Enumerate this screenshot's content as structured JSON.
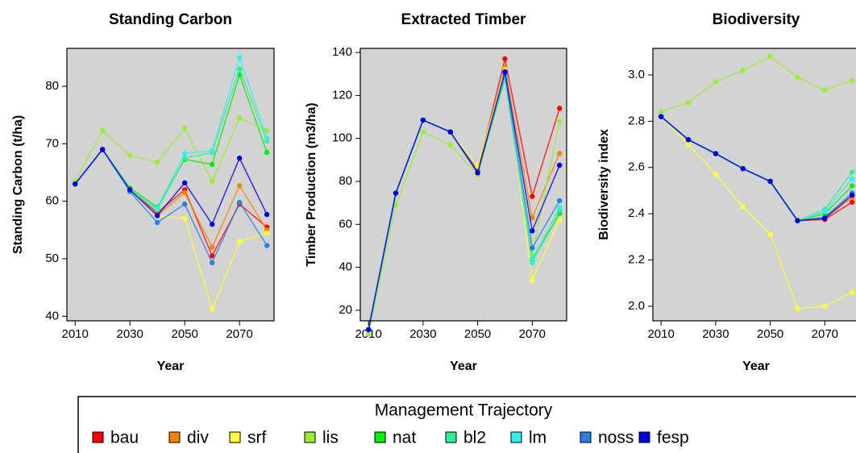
{
  "chart_data": [
    {
      "type": "line",
      "title": "Standing Carbon",
      "x_label": "Year",
      "y_label": "Standing Carbon (t/ha)",
      "x": [
        2010,
        2020,
        2030,
        2040,
        2050,
        2060,
        2070,
        2080
      ],
      "xlim": [
        2007,
        2082.6
      ],
      "xticks": [
        2010,
        2030,
        2050,
        2070
      ],
      "ylim": [
        39.2,
        86.6
      ],
      "yticks": [
        40,
        50,
        60,
        70,
        80
      ],
      "grid": false,
      "series": [
        {
          "name": "bau",
          "color": "#ff0000",
          "values": [
            63,
            69,
            62,
            58,
            62,
            50.5,
            59.5,
            55.5
          ]
        },
        {
          "name": "div",
          "color": "#ff8000",
          "values": [
            63,
            69,
            62,
            57.5,
            61.5,
            52,
            62.7,
            55
          ]
        },
        {
          "name": "srf",
          "color": "#ffff33",
          "values": [
            63,
            69,
            62,
            57.5,
            57,
            41.2,
            53,
            54.5
          ]
        },
        {
          "name": "lis",
          "color": "#99ee33",
          "values": [
            63.5,
            72.3,
            68,
            66.8,
            72.7,
            63.5,
            74.5,
            72.3
          ]
        },
        {
          "name": "nat",
          "color": "#00ee00",
          "values": [
            63,
            69,
            62.3,
            59,
            67.3,
            66.4,
            82,
            68.5
          ]
        },
        {
          "name": "bl2",
          "color": "#33ee99",
          "values": [
            63,
            69,
            62,
            58.5,
            67.5,
            68.5,
            83,
            70.5
          ]
        },
        {
          "name": "lm",
          "color": "#33eeee",
          "values": [
            63,
            69,
            62,
            58.8,
            68.3,
            68.8,
            85,
            71
          ]
        },
        {
          "name": "noss",
          "color": "#2b7fe0",
          "values": [
            63,
            69,
            61.7,
            56.3,
            59.5,
            49.3,
            59.8,
            52.3
          ]
        },
        {
          "name": "fesp",
          "color": "#0000dd",
          "values": [
            63,
            69,
            62,
            57.5,
            63.2,
            56,
            67.5,
            57.7
          ]
        }
      ]
    },
    {
      "type": "line",
      "title": "Extracted Timber",
      "x_label": "Year",
      "y_label": "Timber Production (m3/ha)",
      "x": [
        2010,
        2020,
        2030,
        2040,
        2050,
        2060,
        2070,
        2080
      ],
      "xlim": [
        2007,
        2082.6
      ],
      "xticks": [
        2010,
        2030,
        2050,
        2070
      ],
      "ylim": [
        15.1,
        141.9
      ],
      "yticks": [
        20,
        40,
        60,
        80,
        100,
        120,
        140
      ],
      "grid": false,
      "series": [
        {
          "name": "bau",
          "color": "#ff0000",
          "values": [
            11,
            74.5,
            108.5,
            103,
            85,
            137,
            73,
            114
          ]
        },
        {
          "name": "div",
          "color": "#ff8000",
          "values": [
            11,
            74.5,
            108.5,
            103,
            84,
            133,
            63,
            93
          ]
        },
        {
          "name": "srf",
          "color": "#ffff33",
          "values": [
            11,
            74.5,
            108.5,
            103,
            87,
            132,
            34,
            62
          ]
        },
        {
          "name": "lis",
          "color": "#99ee33",
          "values": [
            9,
            69,
            103,
            97,
            83,
            128,
            46,
            108
          ]
        },
        {
          "name": "nat",
          "color": "#00ee00",
          "values": [
            11,
            74.5,
            108.5,
            103,
            84,
            128,
            43,
            65
          ]
        },
        {
          "name": "bl2",
          "color": "#33ee99",
          "values": [
            11,
            74.5,
            108.5,
            103,
            84,
            129,
            44,
            67
          ]
        },
        {
          "name": "lm",
          "color": "#33eeee",
          "values": [
            11,
            74.5,
            108.5,
            103,
            84,
            129,
            42,
            68
          ]
        },
        {
          "name": "noss",
          "color": "#2b7fe0",
          "values": [
            11,
            74.5,
            108.5,
            103,
            84,
            130,
            49,
            71
          ]
        },
        {
          "name": "fesp",
          "color": "#0000dd",
          "values": [
            11,
            74.5,
            108.5,
            103,
            84,
            131,
            57,
            87.5
          ]
        }
      ]
    },
    {
      "type": "line",
      "title": "Biodiversity",
      "x_label": "Year",
      "y_label": "Biodiversity index",
      "x": [
        2010,
        2020,
        2030,
        2040,
        2050,
        2060,
        2070,
        2080
      ],
      "xlim": [
        2007,
        2082.6
      ],
      "xticks": [
        2010,
        2030,
        2050,
        2070
      ],
      "ylim": [
        1.937,
        3.115
      ],
      "yticks": [
        {
          "value": 2,
          "label": "2.0"
        },
        2.2,
        2.4,
        2.6,
        2.8,
        {
          "value": 3,
          "label": "3.0"
        }
      ],
      "grid": false,
      "series": [
        {
          "name": "bau",
          "color": "#ff0000",
          "values": [
            2.82,
            2.72,
            2.66,
            2.595,
            2.54,
            2.37,
            2.375,
            2.45
          ]
        },
        {
          "name": "div",
          "color": "#ff8000",
          "values": [
            2.82,
            2.72,
            2.66,
            2.595,
            2.54,
            2.37,
            2.38,
            2.47
          ]
        },
        {
          "name": "srf",
          "color": "#ffff33",
          "values": [
            2.82,
            2.7,
            2.57,
            2.43,
            2.31,
            1.99,
            2.0,
            2.06
          ]
        },
        {
          "name": "lis",
          "color": "#99ee33",
          "values": [
            2.84,
            2.88,
            2.97,
            3.02,
            3.08,
            2.99,
            2.935,
            2.975
          ]
        },
        {
          "name": "nat",
          "color": "#00ee00",
          "values": [
            2.82,
            2.72,
            2.66,
            2.595,
            2.54,
            2.37,
            2.4,
            2.52
          ]
        },
        {
          "name": "bl2",
          "color": "#33ee99",
          "values": [
            2.82,
            2.72,
            2.66,
            2.595,
            2.54,
            2.37,
            2.42,
            2.58
          ]
        },
        {
          "name": "lm",
          "color": "#33eeee",
          "values": [
            2.82,
            2.72,
            2.66,
            2.595,
            2.54,
            2.37,
            2.41,
            2.55
          ]
        },
        {
          "name": "noss",
          "color": "#2b7fe0",
          "values": [
            2.82,
            2.72,
            2.66,
            2.595,
            2.54,
            2.37,
            2.385,
            2.49
          ]
        },
        {
          "name": "fesp",
          "color": "#0000dd",
          "values": [
            2.82,
            2.72,
            2.66,
            2.595,
            2.54,
            2.37,
            2.38,
            2.48
          ]
        }
      ]
    }
  ],
  "legend": {
    "title": "Management Trajectory"
  }
}
